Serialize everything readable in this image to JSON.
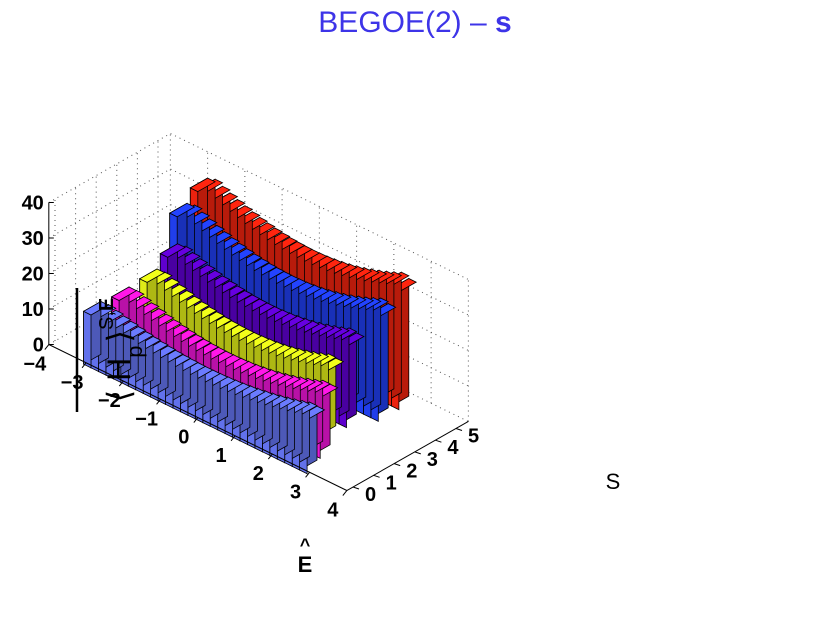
{
  "chart_data": {
    "type": "bar3d",
    "title": "BEGOE(2) – ",
    "title_bold": "s",
    "xlabel": "E",
    "xlabel_hat": "^",
    "ylabel": "S",
    "zlabel": "⟨ H",
    "zlabel_sub": "p",
    "zlabel_tail": "⟩",
    "zlabel_sup": "S,",
    "zlabel_sup_hat": "E",
    "x_ticks": [
      "−4",
      "−3",
      "−2",
      "−1",
      "0",
      "1",
      "2",
      "3",
      "4"
    ],
    "y_ticks": [
      "0",
      "1",
      "2",
      "3",
      "4",
      "5"
    ],
    "z_ticks": [
      "0",
      "10",
      "20",
      "30",
      "40"
    ],
    "x_range": [
      -4,
      4
    ],
    "z_range": [
      0,
      40
    ],
    "series": [
      {
        "S": 0,
        "color": "#6b7bff",
        "x_range": [
          -3.0,
          2.9
        ],
        "v_at_edges": 16,
        "v_at_center": 11
      },
      {
        "S": 1,
        "color": "#ff17e8",
        "x_range": [
          -2.8,
          2.7
        ],
        "v_at_edges": 18,
        "v_at_center": 12
      },
      {
        "S": 2,
        "color": "#f2ff1a",
        "x_range": [
          -2.6,
          2.5
        ],
        "v_at_edges": 21,
        "v_at_center": 15
      },
      {
        "S": 3,
        "color": "#6600e0",
        "x_range": [
          -2.6,
          2.5
        ],
        "v_at_edges": 25,
        "v_at_center": 19
      },
      {
        "S": 4,
        "color": "#2343ff",
        "x_range": [
          -2.9,
          2.8
        ],
        "v_at_edges": 32,
        "v_at_center": 24
      },
      {
        "S": 5,
        "color": "#ff250f",
        "x_range": [
          -2.9,
          2.8
        ],
        "v_at_edges": 36,
        "v_at_center": 28
      }
    ]
  }
}
